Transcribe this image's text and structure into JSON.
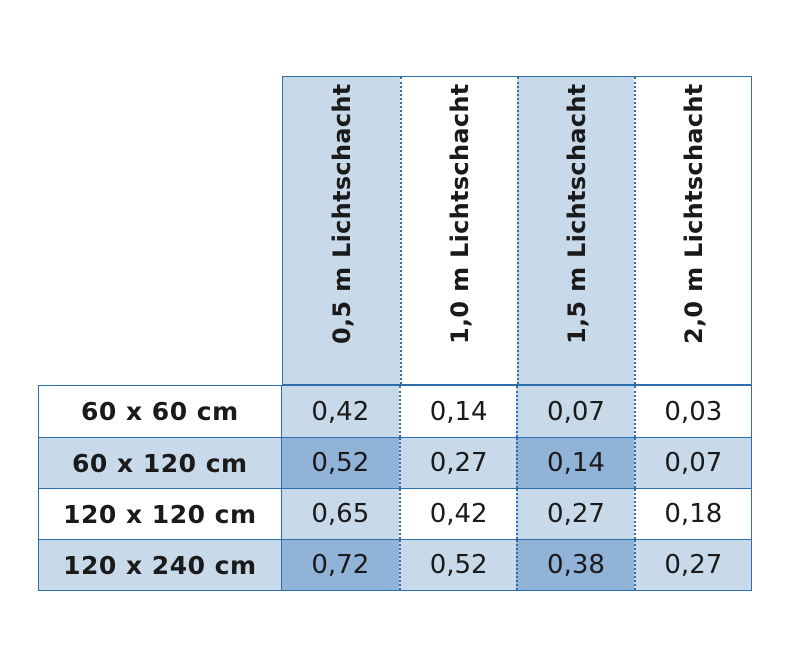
{
  "table": {
    "columns": [
      {
        "label": "0,5 m Lichtschacht"
      },
      {
        "label": "1,0 m Lichtschacht"
      },
      {
        "label": "1,5 m Lichtschacht"
      },
      {
        "label": "2,0 m Lichtschacht"
      }
    ],
    "rows": [
      {
        "label": "60 x 60 cm",
        "values": [
          "0,42",
          "0,14",
          "0,07",
          "0,03"
        ]
      },
      {
        "label": "60 x 120 cm",
        "values": [
          "0,52",
          "0,27",
          "0,14",
          "0,07"
        ]
      },
      {
        "label": "120 x 120 cm",
        "values": [
          "0,65",
          "0,42",
          "0,27",
          "0,18"
        ]
      },
      {
        "label": "120 x 240 cm",
        "values": [
          "0,72",
          "0,52",
          "0,38",
          "0,27"
        ]
      }
    ]
  },
  "colors": {
    "border": "#2d6fab",
    "shade_light": "#c8d9ea",
    "shade_dark": "#92b3d8"
  }
}
